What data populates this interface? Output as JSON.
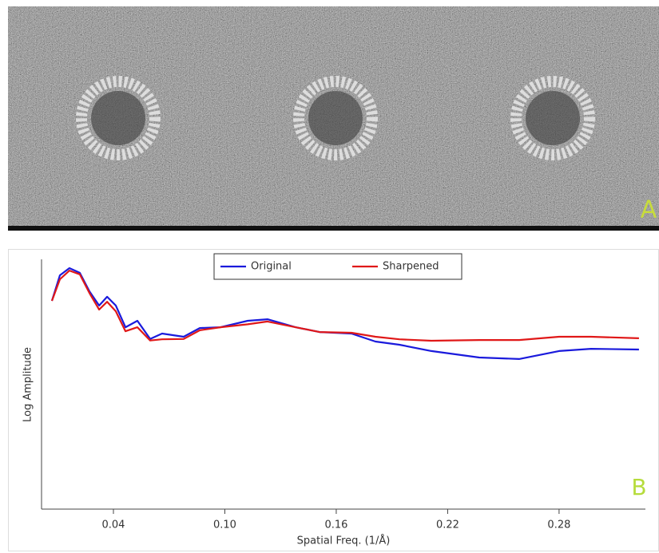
{
  "panels": {
    "a_label": "A",
    "b_label": "B"
  },
  "chart_data": {
    "type": "line",
    "xlabel": "Spatial Freq. (1/Å)",
    "ylabel": "Log Amplitude",
    "x": [
      0.0069,
      0.0112,
      0.0163,
      0.0219,
      0.0271,
      0.0323,
      0.0366,
      0.0413,
      0.0465,
      0.0529,
      0.0598,
      0.0662,
      0.0778,
      0.0865,
      0.0976,
      0.1123,
      0.123,
      0.1381,
      0.151,
      0.1682,
      0.1811,
      0.194,
      0.2112,
      0.237,
      0.2585,
      0.28,
      0.2972,
      0.323
    ],
    "series": [
      {
        "name": "Original",
        "color": "#1a1adc",
        "values": [
          8.34,
          9.36,
          9.65,
          9.46,
          8.72,
          8.15,
          8.5,
          8.15,
          7.28,
          7.54,
          6.81,
          7.03,
          6.9,
          7.25,
          7.28,
          7.54,
          7.6,
          7.28,
          7.09,
          7.03,
          6.71,
          6.58,
          6.33,
          6.07,
          6.01,
          6.33,
          6.42,
          6.39
        ]
      },
      {
        "name": "Sharpened",
        "color": "#e01818",
        "values": [
          8.34,
          9.2,
          9.55,
          9.4,
          8.65,
          7.99,
          8.3,
          7.92,
          7.12,
          7.28,
          6.75,
          6.8,
          6.81,
          7.16,
          7.28,
          7.4,
          7.51,
          7.28,
          7.09,
          7.06,
          6.9,
          6.8,
          6.74,
          6.77,
          6.77,
          6.9,
          6.9,
          6.84
        ]
      }
    ],
    "xlim": [
      0,
      0.3265
    ],
    "ylim": [
      0,
      10
    ],
    "xticks": [
      0.04,
      {
        "value": 0.1,
        "label": "0.10"
      },
      0.16,
      0.22,
      0.28
    ],
    "legend": "top"
  }
}
